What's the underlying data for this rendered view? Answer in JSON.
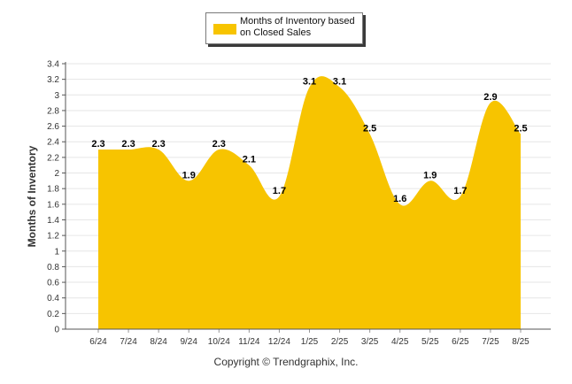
{
  "chart_data": {
    "type": "area",
    "categories": [
      "6/24",
      "7/24",
      "8/24",
      "9/24",
      "10/24",
      "11/24",
      "12/24",
      "1/25",
      "2/25",
      "3/25",
      "4/25",
      "5/25",
      "6/25",
      "7/25",
      "8/25"
    ],
    "series": [
      {
        "name": "Months of Inventory based on Closed Sales",
        "values": [
          2.3,
          2.3,
          2.3,
          1.9,
          2.3,
          2.1,
          1.7,
          3.1,
          3.1,
          2.5,
          1.6,
          1.9,
          1.7,
          2.9,
          2.5
        ],
        "color": "#f7c400"
      }
    ],
    "title": "",
    "xlabel": "",
    "ylabel": "Months of Inventory",
    "ylim": [
      0,
      3.4
    ],
    "yticks": [
      "0",
      "0.2",
      "0.4",
      "0.6",
      "0.8",
      "1",
      "1.2",
      "1.4",
      "1.6",
      "1.8",
      "2",
      "2.2",
      "2.4",
      "2.6",
      "2.8",
      "3",
      "3.2",
      "3.4"
    ],
    "grid": true,
    "legend_position": "top-center",
    "data_labels": [
      "2.3",
      "2.3",
      "2.3",
      "1.9",
      "2.3",
      "2.1",
      "1.7",
      "3.1",
      "3.1",
      "2.5",
      "1.6",
      "1.9",
      "1.7",
      "2.9",
      "2.5"
    ]
  },
  "legend": {
    "label": "Months of Inventory based on Closed Sales"
  },
  "footer": {
    "copyright": "Copyright © Trendgraphix, Inc."
  }
}
